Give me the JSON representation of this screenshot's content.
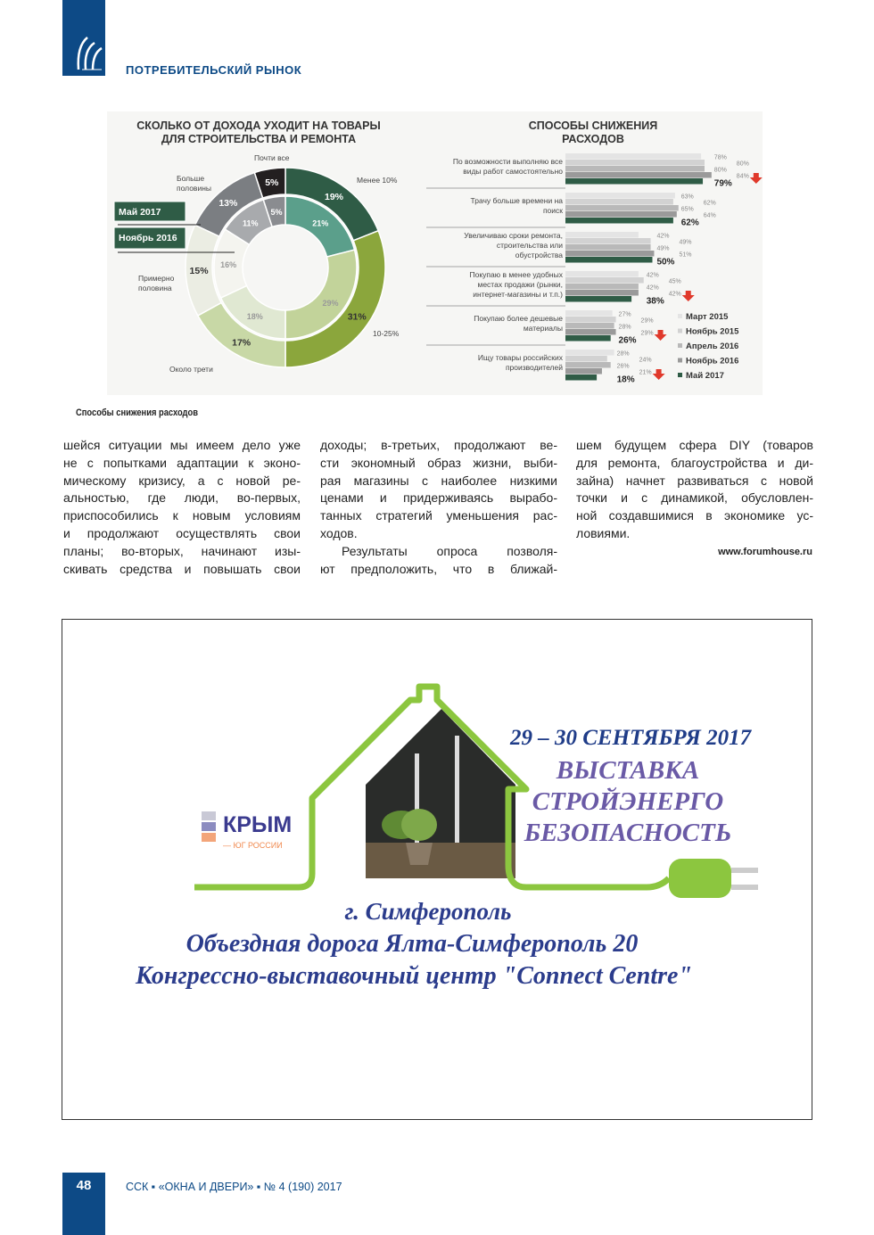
{
  "header": {
    "section": "ПОТРЕБИТЕЛЬСКИЙ РЫНОК"
  },
  "caption": "Способы снижения расходов",
  "columns": [
    {
      "lines": [
        "шейся ситуации мы имеем дело уже",
        "не с попытками адаптации к эконо-",
        "мическому кризису, а с новой ре-",
        "альностью, где люди, во-первых,",
        "приспособились к новым условиям",
        "и продолжают осуществлять свои",
        "планы; во-вторых, начинают изы-",
        "скивать средства и повышать свои"
      ]
    },
    {
      "lines": [
        "доходы; в-третьих, продолжают ве-",
        "сти экономный образ жизни, выби-",
        "рая магазины с наиболее низкими",
        "ценами и придерживаясь вырабо-",
        "танных стратегий уменьшения рас-",
        "ходов.",
        "Результаты опроса позволя-",
        "ют предположить, что в ближай-"
      ]
    },
    {
      "lines": [
        "шем будущем сфера DIY (товаров",
        "для ремонта, благоустройства и ди-",
        "зайна) начнет развиваться с новой",
        "точки и с динамикой, обусловлен-",
        "ной создавшимися в экономике ус-",
        "ловиями."
      ]
    }
  ],
  "source": "www.forumhouse.ru",
  "ad": {
    "date": "29 – 30 СЕНТЯБРЯ 2017",
    "title_lines": [
      "ВЫСТАВКА",
      "СТРОЙЭНЕРГО",
      "БЕЗОПАСНОСТЬ"
    ],
    "logo_main": "КРЫМ",
    "logo_sub": "— ЮГ РОССИИ",
    "city": "г. Симферополь",
    "address": "Объездная дорога Ялта-Симферополь 20",
    "venue": "Конгрессно-выставочный центр \"Connect Centre\"",
    "colors": {
      "house": "#8cc63f",
      "date": "#1f3c88",
      "title": "#6a5aa6"
    }
  },
  "footer": {
    "page": "48",
    "text": "ССК ▪ «ОКНА И ДВЕРИ» ▪ № 4 (190) 2017"
  },
  "chart_data": [
    {
      "type": "pie",
      "title": "СКОЛЬКО ОТ ДОХОДА УХОДИТ НА ТОВАРЫ ДЛЯ СТРОИТЕЛЬСТВА И РЕМОНТА",
      "categories": [
        "Менее 10%",
        "10-25%",
        "Около трети",
        "Примерно половина",
        "Больше половины",
        "Почти все"
      ],
      "series": [
        {
          "name": "Май 2017",
          "values": [
            19,
            31,
            17,
            15,
            13,
            5
          ],
          "colors": [
            "#2f5c46",
            "#8ba63c",
            "#c8d8a6",
            "#ebede3",
            "#7b7e82",
            "#231f20"
          ]
        },
        {
          "name": "Ноябрь 2016",
          "values": [
            21,
            29,
            18,
            16,
            11,
            5
          ],
          "colors": [
            "#5b9f8b",
            "#c2d39a",
            "#e0e8d2",
            "#f4f4ef",
            "#a8aaad",
            "#8a8c90"
          ]
        }
      ]
    },
    {
      "type": "bar",
      "title": "СПОСОБЫ СНИЖЕНИЯ РАСХОДОВ",
      "categories": [
        "По возможности выполняю все виды работ самостоятельно",
        "Трачу больше времени на поиск",
        "Увеличиваю сроки ремонта, строительства или обустройства",
        "Покупаю в менее удобных местах продажи (рынки, интернет-магазины и т.п.)",
        "Покупаю более дешевые материалы",
        "Ищу товары российских производителей"
      ],
      "series": [
        {
          "name": "Март 2015",
          "values": [
            78,
            63,
            42,
            42,
            27,
            28
          ],
          "color": "#e4e4e4"
        },
        {
          "name": "Ноябрь 2015",
          "values": [
            80,
            62,
            49,
            45,
            29,
            24
          ],
          "color": "#d2d2d2"
        },
        {
          "name": "Апрель 2016",
          "values": [
            80,
            65,
            49,
            42,
            28,
            26
          ],
          "color": "#b9b9b9"
        },
        {
          "name": "Ноябрь 2016",
          "values": [
            84,
            64,
            51,
            42,
            29,
            21
          ],
          "color": "#9a9a9a"
        },
        {
          "name": "Май 2017",
          "values": [
            79,
            62,
            50,
            38,
            26,
            18
          ],
          "color": "#2f5c46"
        }
      ],
      "decrease_marked": [
        true,
        false,
        false,
        true,
        true,
        true
      ]
    }
  ]
}
